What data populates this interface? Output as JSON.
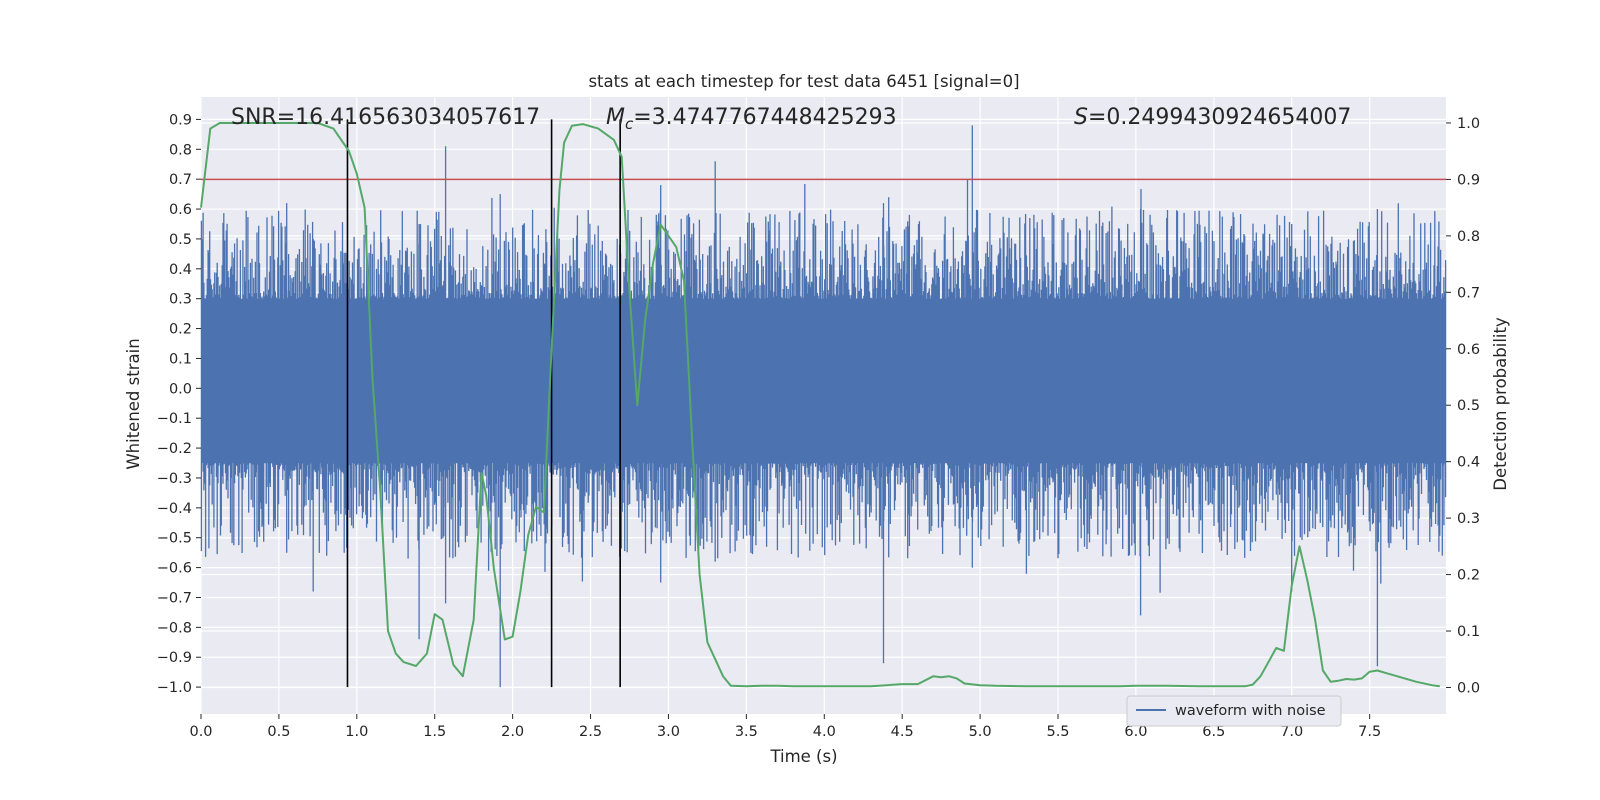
{
  "chart_data": {
    "type": "line",
    "title": "stats at each timestep for test data 6451 [signal=0]",
    "xlabel": "Time (s)",
    "ylabel": "Whitened strain",
    "y2label": "Detection probability",
    "xlim": [
      0.0,
      7.99
    ],
    "ylim": [
      -1.09,
      0.975
    ],
    "y2lim": [
      -0.047,
      1.046
    ],
    "xticks": [
      "0.0",
      "0.5",
      "1.0",
      "1.5",
      "2.0",
      "2.5",
      "3.0",
      "3.5",
      "4.0",
      "4.5",
      "5.0",
      "5.5",
      "6.0",
      "6.5",
      "7.0",
      "7.5"
    ],
    "yticks": [
      "−1.0",
      "−0.9",
      "−0.8",
      "−0.7",
      "−0.6",
      "−0.5",
      "−0.4",
      "−0.3",
      "−0.2",
      "−0.1",
      "0.0",
      "0.1",
      "0.2",
      "0.3",
      "0.4",
      "0.5",
      "0.6",
      "0.7",
      "0.8",
      "0.9"
    ],
    "y2ticks": [
      "0.0",
      "0.1",
      "0.2",
      "0.3",
      "0.4",
      "0.5",
      "0.6",
      "0.7",
      "0.8",
      "0.9",
      "1.0"
    ],
    "annotations": {
      "snr": "SNR=16.416563034057617",
      "mc_symbol": "M",
      "mc_sub": "c",
      "mc_value": "=3.4747767448425293",
      "s_symbol": "S",
      "s_value": "=0.2499430924654007"
    },
    "threshold": {
      "y2": 0.9,
      "color": "#c44e52"
    },
    "vlines": [
      0.94,
      2.25,
      2.69
    ],
    "legend": {
      "label": "waveform with noise",
      "location": "lower right"
    },
    "series": [
      {
        "name": "waveform with noise",
        "axis": "left",
        "color": "#4c72b0",
        "envelope_peaks": [
          {
            "x": 0.55,
            "max": 0.62,
            "min": -0.55
          },
          {
            "x": 0.72,
            "max": 0.5,
            "min": -0.68
          },
          {
            "x": 1.4,
            "max": 0.55,
            "min": -0.84
          },
          {
            "x": 1.57,
            "max": 0.81,
            "min": -0.72
          },
          {
            "x": 1.92,
            "max": 0.65,
            "min": -1.0
          },
          {
            "x": 2.95,
            "max": 0.68,
            "min": -0.65
          },
          {
            "x": 3.3,
            "max": 0.76,
            "min": -0.58
          },
          {
            "x": 4.38,
            "max": 0.62,
            "min": -0.92
          },
          {
            "x": 4.95,
            "max": 0.88,
            "min": -0.6
          },
          {
            "x": 6.03,
            "max": 0.6,
            "min": -0.76
          },
          {
            "x": 7.0,
            "max": 0.55,
            "min": -0.68
          },
          {
            "x": 7.55,
            "max": 0.6,
            "min": -0.93
          }
        ]
      },
      {
        "name": "detection probability",
        "axis": "right",
        "color": "#55a868",
        "x": [
          0.0,
          0.06,
          0.12,
          0.2,
          0.3,
          0.45,
          0.6,
          0.75,
          0.85,
          0.95,
          1.0,
          1.05,
          1.1,
          1.15,
          1.2,
          1.25,
          1.3,
          1.38,
          1.45,
          1.5,
          1.55,
          1.62,
          1.68,
          1.75,
          1.8,
          1.83,
          1.88,
          1.95,
          2.0,
          2.05,
          2.1,
          2.15,
          2.2,
          2.25,
          2.3,
          2.33,
          2.38,
          2.45,
          2.55,
          2.65,
          2.7,
          2.75,
          2.8,
          2.85,
          2.9,
          2.95,
          3.0,
          3.05,
          3.1,
          3.15,
          3.2,
          3.25,
          3.3,
          3.35,
          3.4,
          3.5,
          3.6,
          3.7,
          3.8,
          3.9,
          4.0,
          4.1,
          4.2,
          4.3,
          4.4,
          4.5,
          4.6,
          4.7,
          4.75,
          4.8,
          4.85,
          4.9,
          5.0,
          5.1,
          5.3,
          5.5,
          5.7,
          5.9,
          6.0,
          6.2,
          6.4,
          6.5,
          6.6,
          6.7,
          6.75,
          6.8,
          6.9,
          6.95,
          7.0,
          7.05,
          7.1,
          7.15,
          7.2,
          7.25,
          7.3,
          7.35,
          7.4,
          7.45,
          7.5,
          7.55,
          7.6,
          7.7,
          7.8,
          7.9,
          7.95
        ],
        "y": [
          0.85,
          0.99,
          1.0,
          1.0,
          1.0,
          1.0,
          1.0,
          1.0,
          0.99,
          0.95,
          0.91,
          0.85,
          0.55,
          0.35,
          0.1,
          0.06,
          0.045,
          0.038,
          0.06,
          0.13,
          0.12,
          0.04,
          0.02,
          0.12,
          0.38,
          0.34,
          0.21,
          0.085,
          0.09,
          0.17,
          0.27,
          0.32,
          0.31,
          0.6,
          0.88,
          0.965,
          0.995,
          0.998,
          0.99,
          0.97,
          0.94,
          0.7,
          0.5,
          0.65,
          0.75,
          0.82,
          0.8,
          0.78,
          0.72,
          0.45,
          0.2,
          0.08,
          0.05,
          0.02,
          0.003,
          0.002,
          0.003,
          0.003,
          0.002,
          0.002,
          0.002,
          0.002,
          0.002,
          0.002,
          0.004,
          0.006,
          0.006,
          0.02,
          0.018,
          0.02,
          0.016,
          0.007,
          0.004,
          0.003,
          0.002,
          0.002,
          0.002,
          0.002,
          0.003,
          0.003,
          0.002,
          0.002,
          0.002,
          0.002,
          0.005,
          0.02,
          0.07,
          0.065,
          0.18,
          0.25,
          0.19,
          0.12,
          0.03,
          0.01,
          0.012,
          0.015,
          0.014,
          0.016,
          0.028,
          0.03,
          0.026,
          0.018,
          0.01,
          0.004,
          0.002
        ]
      }
    ]
  }
}
